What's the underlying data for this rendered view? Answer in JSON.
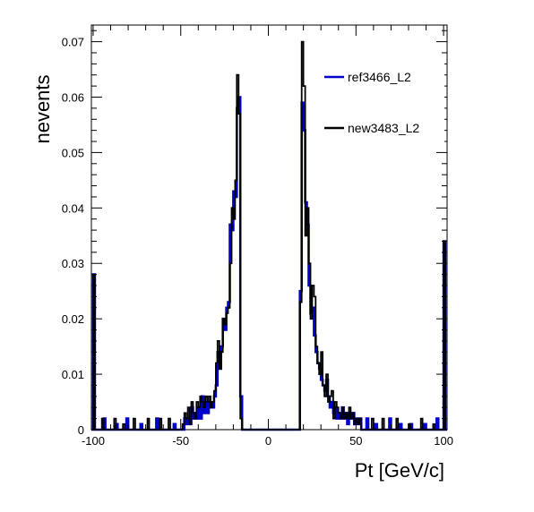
{
  "chart_data": {
    "type": "histogram",
    "xlabel": "Pt [GeV/c]",
    "ylabel": "nevents",
    "xlim": [
      -101,
      102
    ],
    "ylim": [
      0,
      0.073
    ],
    "x_ticks": [
      "-100",
      "-50",
      "0",
      "50",
      "100"
    ],
    "y_ticks": [
      "0",
      "0.01",
      "0.02",
      "0.03",
      "0.04",
      "0.05",
      "0.06",
      "0.07"
    ],
    "legend_position": "top-right",
    "series": [
      {
        "name": "ref3466_L2",
        "color": "#0000cc",
        "bins": [
          [
            -101,
            0
          ],
          [
            -100,
            0.028
          ],
          [
            -99,
            0
          ],
          [
            -95,
            0
          ],
          [
            -94,
            0.002
          ],
          [
            -93,
            0
          ],
          [
            -88,
            0
          ],
          [
            -87,
            0.001
          ],
          [
            -86,
            0
          ],
          [
            -82,
            0
          ],
          [
            -81,
            0.002
          ],
          [
            -80,
            0
          ],
          [
            -74,
            0
          ],
          [
            -73,
            0.001
          ],
          [
            -72,
            0
          ],
          [
            -65,
            0
          ],
          [
            -64,
            0.002
          ],
          [
            -63,
            0
          ],
          [
            -55,
            0
          ],
          [
            -54,
            0.001
          ],
          [
            -53,
            0
          ],
          [
            -49,
            0
          ],
          [
            -48,
            0.002
          ],
          [
            -47,
            0.001
          ],
          [
            -46,
            0.002
          ],
          [
            -45,
            0.001
          ],
          [
            -44,
            0.004
          ],
          [
            -43,
            0.002
          ],
          [
            -42,
            0.003
          ],
          [
            -41,
            0.002
          ],
          [
            -40,
            0.004
          ],
          [
            -39,
            0.002
          ],
          [
            -38,
            0.006
          ],
          [
            -37,
            0.003
          ],
          [
            -36,
            0.005
          ],
          [
            -35,
            0.003
          ],
          [
            -34,
            0.005
          ],
          [
            -33,
            0.004
          ],
          [
            -32,
            0.004
          ],
          [
            -31,
            0.006
          ],
          [
            -30,
            0.008
          ],
          [
            -29,
            0.014
          ],
          [
            -28,
            0.011
          ],
          [
            -27,
            0.015
          ],
          [
            -26,
            0.02
          ],
          [
            -25,
            0.018
          ],
          [
            -24,
            0.022
          ],
          [
            -23,
            0.023
          ],
          [
            -22,
            0.037
          ],
          [
            -21,
            0.036
          ],
          [
            -20,
            0.043
          ],
          [
            -19,
            0.042
          ],
          [
            -18,
            0.058
          ],
          [
            -17,
            0.06
          ],
          [
            -16,
            0.006
          ],
          [
            -15,
            0
          ],
          [
            17,
            0
          ],
          [
            18,
            0.025
          ],
          [
            19,
            0.059
          ],
          [
            20,
            0.054
          ],
          [
            21,
            0.041
          ],
          [
            22,
            0.037
          ],
          [
            23,
            0.026
          ],
          [
            24,
            0.021
          ],
          [
            25,
            0.022
          ],
          [
            26,
            0.017
          ],
          [
            27,
            0.014
          ],
          [
            28,
            0.012
          ],
          [
            29,
            0.011
          ],
          [
            30,
            0.009
          ],
          [
            31,
            0.008
          ],
          [
            32,
            0.007
          ],
          [
            33,
            0.009
          ],
          [
            34,
            0.006
          ],
          [
            35,
            0.004
          ],
          [
            36,
            0.005
          ],
          [
            37,
            0.003
          ],
          [
            38,
            0.004
          ],
          [
            39,
            0.002
          ],
          [
            40,
            0.003
          ],
          [
            41,
            0.002
          ],
          [
            42,
            0.004
          ],
          [
            43,
            0.002
          ],
          [
            44,
            0.003
          ],
          [
            45,
            0.001
          ],
          [
            46,
            0.003
          ],
          [
            47,
            0.002
          ],
          [
            48,
            0.003
          ],
          [
            49,
            0.001
          ],
          [
            50,
            0.002
          ],
          [
            51,
            0.001
          ],
          [
            52,
            0.002
          ],
          [
            53,
            0
          ],
          [
            55,
            0
          ],
          [
            56,
            0.002
          ],
          [
            57,
            0
          ],
          [
            60,
            0
          ],
          [
            61,
            0.001
          ],
          [
            62,
            0
          ],
          [
            68,
            0
          ],
          [
            69,
            0.002
          ],
          [
            70,
            0
          ],
          [
            74,
            0
          ],
          [
            75,
            0.001
          ],
          [
            76,
            0
          ],
          [
            80,
            0
          ],
          [
            81,
            0.001
          ],
          [
            82,
            0
          ],
          [
            88,
            0
          ],
          [
            89,
            0.001
          ],
          [
            90,
            0
          ],
          [
            95,
            0
          ],
          [
            96,
            0.002
          ],
          [
            97,
            0
          ],
          [
            99,
            0
          ],
          [
            100,
            0.034
          ],
          [
            101,
            0
          ]
        ]
      },
      {
        "name": "new3483_L2",
        "color": "#000000",
        "bins": [
          [
            -101,
            0
          ],
          [
            -100,
            0.028
          ],
          [
            -99,
            0
          ],
          [
            -96,
            0
          ],
          [
            -95,
            0.002
          ],
          [
            -94,
            0
          ],
          [
            -89,
            0
          ],
          [
            -88,
            0.002
          ],
          [
            -87,
            0
          ],
          [
            -84,
            0
          ],
          [
            -83,
            0.001
          ],
          [
            -82,
            0
          ],
          [
            -78,
            0
          ],
          [
            -77,
            0.002
          ],
          [
            -76,
            0
          ],
          [
            -70,
            0
          ],
          [
            -69,
            0.002
          ],
          [
            -68,
            0
          ],
          [
            -63,
            0
          ],
          [
            -62,
            0.002
          ],
          [
            -61,
            0
          ],
          [
            -58,
            0
          ],
          [
            -57,
            0.002
          ],
          [
            -56,
            0
          ],
          [
            -50,
            0
          ],
          [
            -49,
            0.001
          ],
          [
            -48,
            0.003
          ],
          [
            -47,
            0.002
          ],
          [
            -46,
            0.004
          ],
          [
            -45,
            0.001
          ],
          [
            -44,
            0.005
          ],
          [
            -43,
            0.003
          ],
          [
            -42,
            0.002
          ],
          [
            -41,
            0.005
          ],
          [
            -40,
            0.004
          ],
          [
            -39,
            0.006
          ],
          [
            -38,
            0.005
          ],
          [
            -37,
            0.004
          ],
          [
            -36,
            0.006
          ],
          [
            -35,
            0.005
          ],
          [
            -34,
            0.006
          ],
          [
            -33,
            0.004
          ],
          [
            -32,
            0.005
          ],
          [
            -31,
            0.007
          ],
          [
            -30,
            0.012
          ],
          [
            -29,
            0.016
          ],
          [
            -28,
            0.011
          ],
          [
            -27,
            0.014
          ],
          [
            -26,
            0.02
          ],
          [
            -25,
            0.019
          ],
          [
            -24,
            0.021
          ],
          [
            -23,
            0.022
          ],
          [
            -22,
            0.03
          ],
          [
            -21,
            0.04
          ],
          [
            -20,
            0.038
          ],
          [
            -19,
            0.045
          ],
          [
            -18,
            0.064
          ],
          [
            -17,
            0.057
          ],
          [
            -16,
            0.002
          ],
          [
            -15,
            0
          ],
          [
            17,
            0
          ],
          [
            18,
            0.023
          ],
          [
            19,
            0.07
          ],
          [
            20,
            0.062
          ],
          [
            21,
            0.035
          ],
          [
            22,
            0.04
          ],
          [
            23,
            0.03
          ],
          [
            24,
            0.02
          ],
          [
            25,
            0.026
          ],
          [
            26,
            0.024
          ],
          [
            27,
            0.015
          ],
          [
            28,
            0.012
          ],
          [
            29,
            0.01
          ],
          [
            30,
            0.014
          ],
          [
            31,
            0.008
          ],
          [
            32,
            0.006
          ],
          [
            33,
            0.01
          ],
          [
            34,
            0.005
          ],
          [
            35,
            0.006
          ],
          [
            36,
            0.007
          ],
          [
            37,
            0.002
          ],
          [
            38,
            0.005
          ],
          [
            39,
            0.004
          ],
          [
            40,
            0.003
          ],
          [
            41,
            0.002
          ],
          [
            42,
            0.004
          ],
          [
            43,
            0.002
          ],
          [
            44,
            0.003
          ],
          [
            45,
            0.002
          ],
          [
            46,
            0.004
          ],
          [
            47,
            0.002
          ],
          [
            48,
            0.003
          ],
          [
            49,
            0.001
          ],
          [
            50,
            0.002
          ],
          [
            51,
            0.001
          ],
          [
            52,
            0.002
          ],
          [
            53,
            0
          ],
          [
            58,
            0
          ],
          [
            59,
            0.002
          ],
          [
            60,
            0
          ],
          [
            64,
            0
          ],
          [
            65,
            0.002
          ],
          [
            66,
            0
          ],
          [
            72,
            0
          ],
          [
            73,
            0.002
          ],
          [
            74,
            0
          ],
          [
            79,
            0
          ],
          [
            80,
            0.001
          ],
          [
            81,
            0
          ],
          [
            86,
            0
          ],
          [
            87,
            0.002
          ],
          [
            88,
            0
          ],
          [
            93,
            0
          ],
          [
            94,
            0.001
          ],
          [
            95,
            0
          ],
          [
            99,
            0
          ],
          [
            100,
            0.034
          ],
          [
            101,
            0
          ]
        ]
      }
    ]
  }
}
